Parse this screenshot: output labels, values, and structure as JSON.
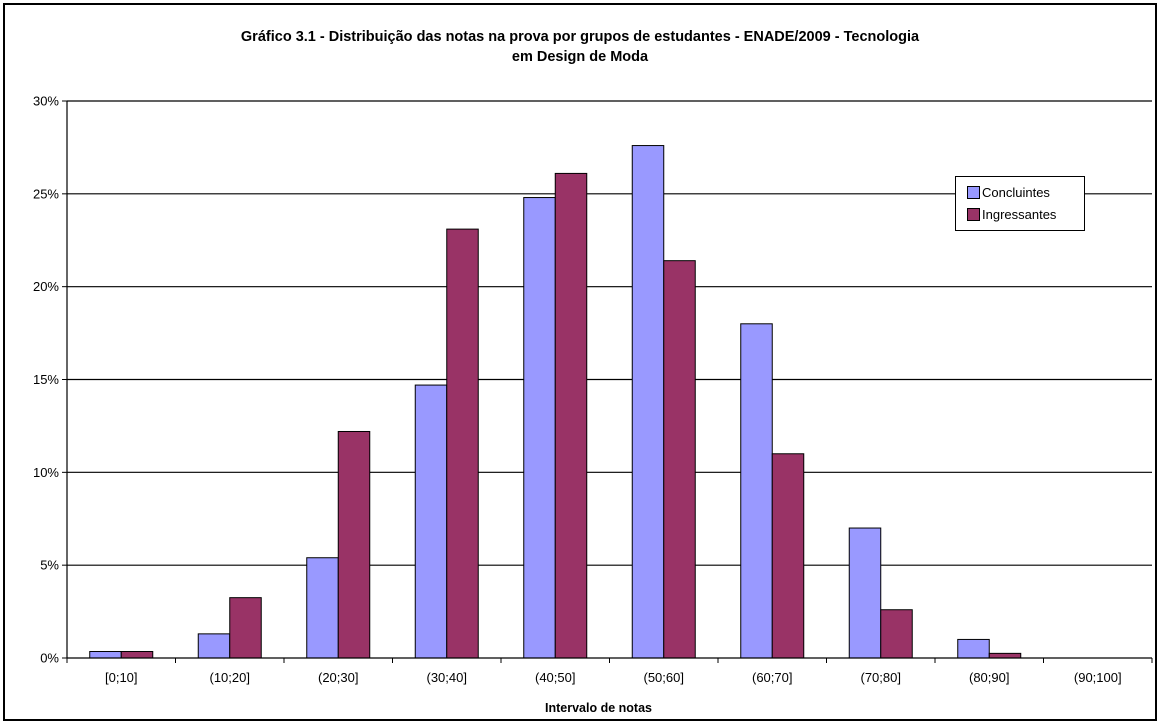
{
  "chart_data": {
    "type": "bar",
    "title_line1": "Gráfico 3.1 - Distribuição das notas na prova por grupos de estudantes - ENADE/2009 - Tecnologia",
    "title_line2": "em Design de Moda",
    "xlabel": "Intervalo de notas",
    "ylabel": "",
    "categories": [
      "[0;10]",
      "(10;20]",
      "(20;30]",
      "(30;40]",
      "(40;50]",
      "(50;60]",
      "(60;70]",
      "(70;80]",
      "(80;90]",
      "(90;100]"
    ],
    "yticks": [
      "0%",
      "5%",
      "10%",
      "15%",
      "20%",
      "25%",
      "30%"
    ],
    "ylim": [
      0,
      30
    ],
    "grid": true,
    "legend_position": "right",
    "series": [
      {
        "name": "Concluintes",
        "color": "#9999ff",
        "values": [
          0.35,
          1.3,
          5.4,
          14.7,
          24.8,
          27.6,
          18.0,
          7.0,
          1.0,
          0.0
        ]
      },
      {
        "name": "Ingressantes",
        "color": "#993366",
        "values": [
          0.35,
          3.25,
          12.2,
          23.1,
          26.1,
          21.4,
          11.0,
          2.6,
          0.25,
          0.0
        ]
      }
    ]
  }
}
